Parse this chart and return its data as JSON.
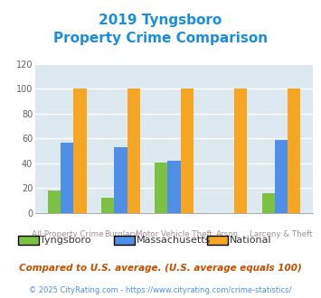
{
  "title_line1": "2019 Tyngsboro",
  "title_line2": "Property Crime Comparison",
  "categories": [
    "All Property Crime",
    "Burglary",
    "Motor Vehicle Theft",
    "Arson",
    "Larceny & Theft"
  ],
  "top_labels": [
    "",
    "Burglary",
    "",
    "Arson",
    ""
  ],
  "bottom_labels": [
    "All Property Crime",
    "",
    "Motor Vehicle Theft",
    "",
    "Larceny & Theft"
  ],
  "tyngsboro": [
    18,
    12,
    41,
    0,
    16
  ],
  "massachusetts": [
    57,
    53,
    42,
    0,
    59
  ],
  "national": [
    100,
    100,
    100,
    100,
    100
  ],
  "bar_colors": {
    "tyngsboro": "#7cc142",
    "massachusetts": "#4f8fe8",
    "national": "#f5a623"
  },
  "ylim": [
    0,
    120
  ],
  "yticks": [
    0,
    20,
    40,
    60,
    80,
    100,
    120
  ],
  "legend_labels": [
    "Tyngsboro",
    "Massachusetts",
    "National"
  ],
  "footnote1": "Compared to U.S. average. (U.S. average equals 100)",
  "footnote2": "© 2025 CityRating.com - https://www.cityrating.com/crime-statistics/",
  "title_color": "#1a8edc",
  "footnote1_color": "#c05000",
  "footnote2_color": "#4f8fe8",
  "plot_bg_color": "#dce9f0",
  "grid_color": "#ffffff",
  "label_color": "#a09090",
  "tick_label_color": "#606060"
}
